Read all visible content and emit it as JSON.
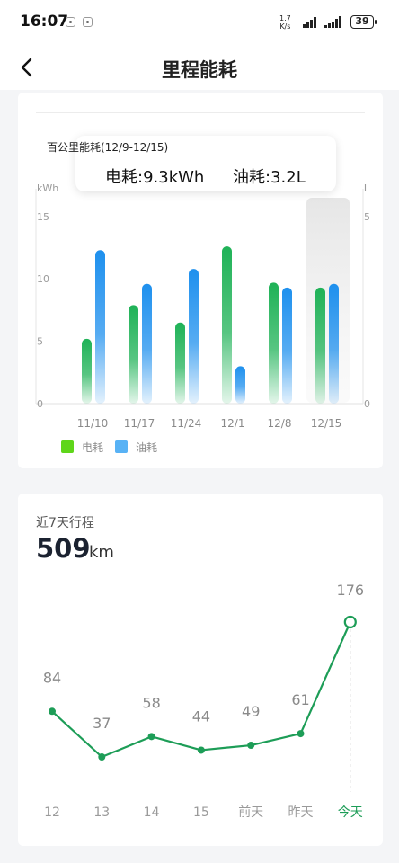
{
  "status": {
    "time": "16:07",
    "net_speed_value": "1.7",
    "net_speed_unit": "K/s",
    "battery": "39"
  },
  "header": {
    "title": "里程能耗"
  },
  "energy_card": {
    "tooltip": {
      "title": "百公里能耗(12/9-12/15)",
      "electric": "电耗:9.3kWh",
      "fuel": "油耗:3.2L"
    },
    "legend": {
      "electric": "电耗",
      "fuel": "油耗"
    }
  },
  "trip_card": {
    "label": "近7天行程",
    "value": "509",
    "unit": "km"
  },
  "colors": {
    "electric": "#1fb257",
    "fuel": "#1e90ee",
    "line": "#1d9d57",
    "legend_electric": "#5fd61a",
    "legend_fuel": "#58b2f5",
    "today": "#1d9d57"
  },
  "chart_data": [
    {
      "type": "bar",
      "categories": [
        "11/10",
        "11/17",
        "11/24",
        "12/1",
        "12/8",
        "12/15"
      ],
      "left_axis": {
        "label": "kWh",
        "ticks": [
          0,
          5,
          10,
          15
        ],
        "ylim": [
          0,
          16.5
        ]
      },
      "right_axis": {
        "label": "L",
        "ticks": [
          0,
          5
        ],
        "ylim": [
          0,
          5.5
        ]
      },
      "series": [
        {
          "name": "电耗",
          "axis": "left",
          "values": [
            5.2,
            7.9,
            6.5,
            12.6,
            9.7,
            9.3
          ]
        },
        {
          "name": "油耗",
          "axis": "right",
          "values": [
            4.1,
            3.2,
            3.6,
            1.0,
            3.1,
            3.2
          ]
        }
      ],
      "highlighted": "12/15",
      "legend_position": "bottom-left"
    },
    {
      "type": "line",
      "categories": [
        "12",
        "13",
        "14",
        "15",
        "前天",
        "昨天",
        "今天"
      ],
      "values": [
        84,
        37,
        58,
        44,
        49,
        61,
        176
      ],
      "highlighted": "今天"
    }
  ]
}
